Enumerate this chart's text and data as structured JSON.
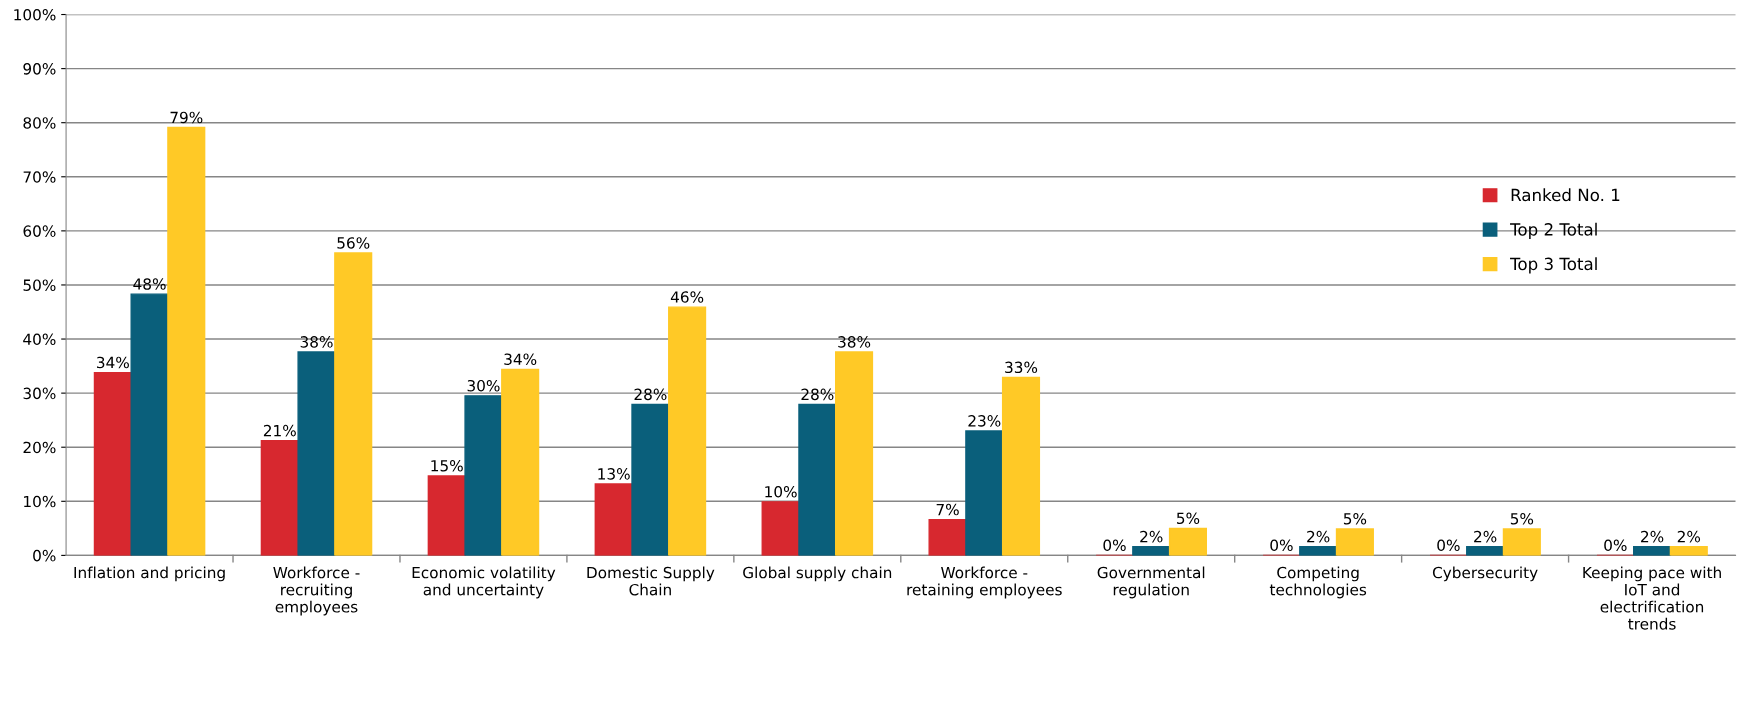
{
  "chart_data": {
    "type": "bar",
    "categories": [
      "Inflation and pricing",
      "Workforce -\nrecruiting\nemployees",
      "Economic volatility\nand uncertainty",
      "Domestic Supply\nChain",
      "Global supply chain",
      "Workforce -\nretaining employees",
      "Governmental\nregulation",
      "Competing\ntechnologies",
      "Cybersecurity",
      "Keeping pace with\nIoT and\nelectrification\ntrends"
    ],
    "series": [
      {
        "name": "Ranked No. 1",
        "color": "#d7282f",
        "values": [
          33.8,
          21.2,
          14.7,
          13.2,
          9.9,
          6.6,
          0,
          0,
          0,
          0
        ],
        "value_labels": [
          "34%",
          "21%",
          "15%",
          "13%",
          "10%",
          "7%",
          "0%",
          "0%",
          "0%",
          "0%"
        ]
      },
      {
        "name": "Top 2 Total",
        "color": "#0a5f7b",
        "values": [
          48.3,
          37.6,
          29.5,
          27.9,
          27.9,
          23.0,
          1.6,
          1.6,
          1.6,
          1.6
        ],
        "value_labels": [
          "48%",
          "38%",
          "30%",
          "28%",
          "28%",
          "23%",
          "2%",
          "2%",
          "2%",
          "2%"
        ]
      },
      {
        "name": "Top 3 Total",
        "color": "#ffc926",
        "values": [
          79.1,
          55.9,
          34.4,
          45.9,
          37.6,
          32.9,
          5.0,
          4.9,
          4.9,
          1.6
        ],
        "value_labels": [
          "79%",
          "56%",
          "34%",
          "46%",
          "38%",
          "33%",
          "5%",
          "5%",
          "5%",
          "2%"
        ]
      }
    ],
    "ylim": [
      0,
      100
    ],
    "yticks": [
      {
        "value": 0,
        "label": "0%"
      },
      {
        "value": 10,
        "label": "10%"
      },
      {
        "value": 20,
        "label": "20%"
      },
      {
        "value": 30,
        "label": "30%"
      },
      {
        "value": 40,
        "label": "40%"
      },
      {
        "value": 50,
        "label": "50%"
      },
      {
        "value": 60,
        "label": "60%"
      },
      {
        "value": 70,
        "label": "70%"
      },
      {
        "value": 80,
        "label": "80%"
      },
      {
        "value": 90,
        "label": "90%"
      },
      {
        "value": 100,
        "label": "100%"
      }
    ],
    "grid": "y",
    "legend": "right"
  }
}
